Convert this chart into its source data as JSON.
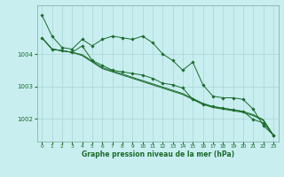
{
  "xlabel": "Graphe pression niveau de la mer (hPa)",
  "background_color": "#c8eef0",
  "grid_color": "#b0d8da",
  "line_color": "#1a6b2a",
  "x_values": [
    0,
    1,
    2,
    3,
    4,
    5,
    6,
    7,
    8,
    9,
    10,
    11,
    12,
    13,
    14,
    15,
    16,
    17,
    18,
    19,
    20,
    21,
    22,
    23
  ],
  "series": [
    [
      1005.2,
      1004.55,
      1004.2,
      1004.15,
      1004.45,
      1004.25,
      1004.45,
      1004.55,
      1004.5,
      1004.45,
      1004.55,
      1004.35,
      1004.0,
      1003.8,
      1003.5,
      1003.75,
      1003.05,
      1002.7,
      1002.65,
      1002.65,
      1002.6,
      1002.3,
      1001.8,
      1001.5
    ],
    [
      1004.5,
      1004.15,
      1004.1,
      1004.05,
      1003.95,
      1003.75,
      1003.55,
      1003.45,
      1003.35,
      1003.25,
      1003.15,
      1003.05,
      1002.95,
      1002.85,
      1002.75,
      1002.6,
      1002.45,
      1002.35,
      1002.3,
      1002.25,
      1002.2,
      1002.1,
      1001.95,
      1001.5
    ],
    [
      1004.5,
      1004.15,
      1004.1,
      1004.05,
      1003.98,
      1003.78,
      1003.58,
      1003.48,
      1003.38,
      1003.28,
      1003.18,
      1003.08,
      1002.98,
      1002.88,
      1002.78,
      1002.63,
      1002.48,
      1002.38,
      1002.33,
      1002.28,
      1002.23,
      1002.13,
      1001.98,
      1001.5
    ],
    [
      1004.5,
      1004.15,
      1004.1,
      1004.05,
      1004.25,
      1003.8,
      1003.65,
      1003.5,
      1003.45,
      1003.4,
      1003.35,
      1003.25,
      1003.1,
      1003.05,
      1002.95,
      1002.6,
      1002.45,
      1002.38,
      1002.33,
      1002.28,
      1002.23,
      1001.98,
      1001.88,
      1001.5
    ]
  ],
  "ylim": [
    1001.3,
    1005.5
  ],
  "yticks": [
    1002,
    1003,
    1004
  ],
  "xlim": [
    -0.5,
    23.5
  ],
  "xticks": [
    0,
    1,
    2,
    3,
    4,
    5,
    6,
    7,
    8,
    9,
    10,
    11,
    12,
    13,
    14,
    15,
    16,
    17,
    18,
    19,
    20,
    21,
    22,
    23
  ]
}
